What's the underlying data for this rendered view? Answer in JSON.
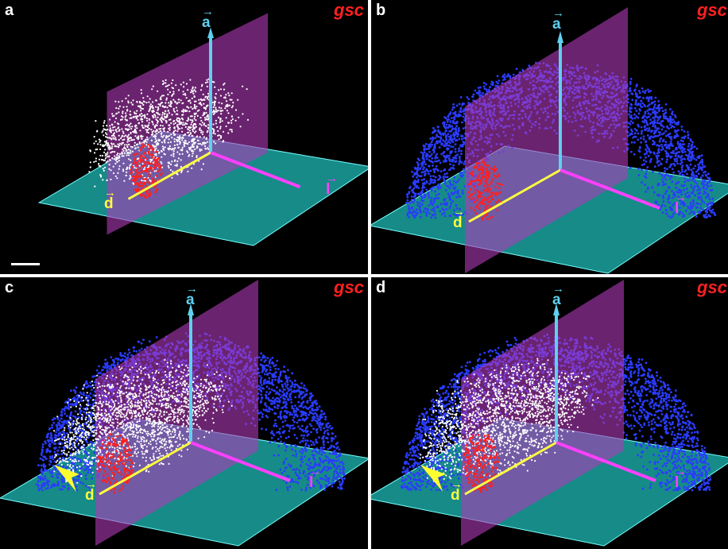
{
  "panels": [
    {
      "label": "a",
      "gene": "gsc",
      "axis_a": "a",
      "axis_d": "d",
      "axis_l": "l",
      "sphere": false,
      "white_wedge": true,
      "arrowhead": false,
      "scale_bar": true
    },
    {
      "label": "b",
      "gene": "gsc",
      "axis_a": "a",
      "axis_d": "d",
      "axis_l": "l",
      "sphere": true,
      "white_wedge": false,
      "arrowhead": false,
      "scale_bar": false
    },
    {
      "label": "c",
      "gene": "gsc",
      "axis_a": "a",
      "axis_d": "d",
      "axis_l": "l",
      "sphere": true,
      "white_wedge": true,
      "arrowhead": true,
      "scale_bar": false
    },
    {
      "label": "d",
      "gene": "gsc",
      "axis_a": "a",
      "axis_d": "d",
      "axis_l": "l",
      "sphere": true,
      "white_wedge": true,
      "arrowhead": true,
      "scale_bar": false
    }
  ],
  "colors": {
    "background": "#000000",
    "floor_plane": "#1aa3a0",
    "vertical_plane": "#b03ab8",
    "axis_a": "#5fd0f0",
    "axis_d": "#ffff40",
    "axis_l": "#ff40ff",
    "gene_label": "#ff2020",
    "cells_blue": "#2a3cff",
    "cells_white": "#ffffff",
    "cells_red": "#ff2020"
  }
}
